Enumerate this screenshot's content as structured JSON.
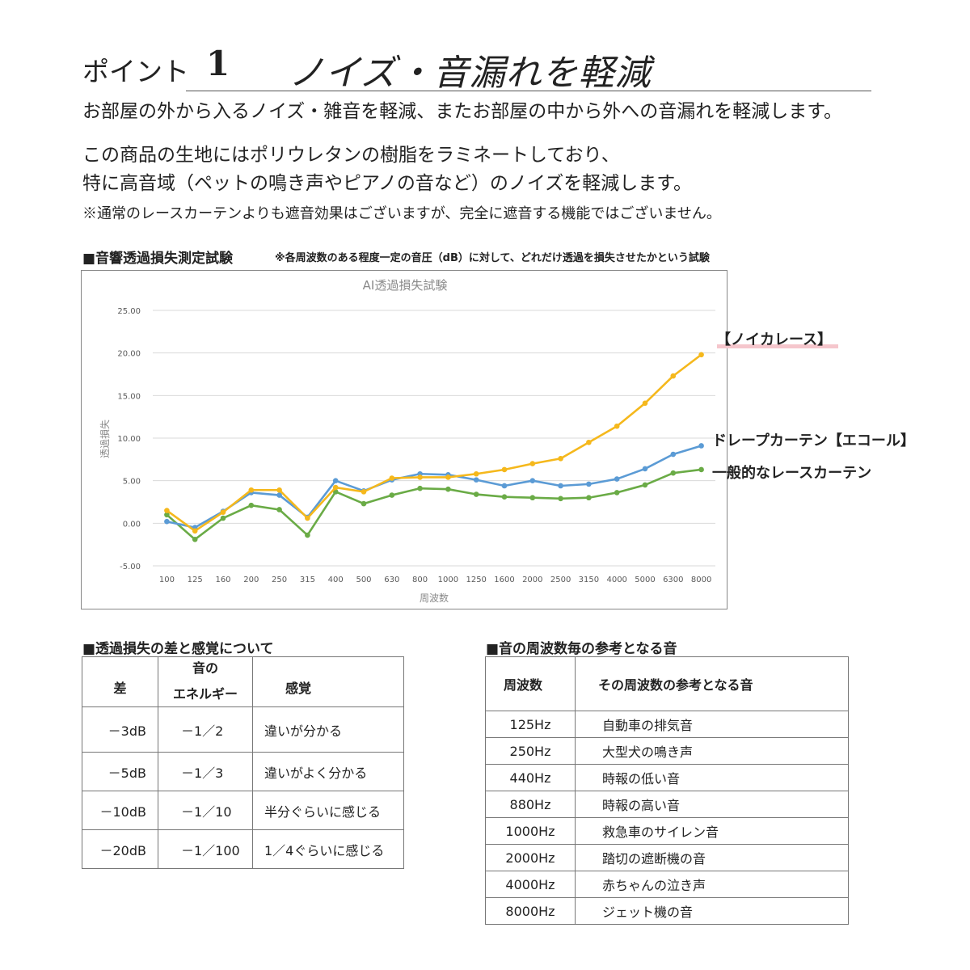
{
  "header": {
    "title_prefix": "ポイント",
    "title_number": "1",
    "title_main": "ノイズ・音漏れを軽減"
  },
  "intro": {
    "line1": "お部屋の外から入るノイズ・雑音を軽減、またお部屋の中から外への音漏れを軽減します。",
    "line2": "この商品の生地にはポリウレタンの樹脂をラミネートしており、",
    "line3": "特に高音域（ペットの鳴き声やピアノの音など）のノイズを軽減します。",
    "note": "※通常のレースカーテンよりも遮音効果はございますが、完全に遮音する機能ではございません。"
  },
  "chart_section": {
    "heading": "■音響透過損失測定試験",
    "subheading": "※各周波数のある程度一定の音圧（dB）に対して、どれだけ透過を損失させたかという試験"
  },
  "chart_data": {
    "type": "line",
    "title": "AI透過損失試験",
    "xlabel": "周波数",
    "ylabel": "透過損失",
    "ylim": [
      -5,
      25
    ],
    "yticks": [
      "25.00",
      "20.00",
      "15.00",
      "10.00",
      "5.00",
      "0.00",
      "-5.00"
    ],
    "ytick_values": [
      25,
      20,
      15,
      10,
      5,
      0,
      -5
    ],
    "grid": true,
    "categories": [
      "100",
      "125",
      "160",
      "200",
      "250",
      "315",
      "400",
      "500",
      "630",
      "800",
      "1000",
      "1250",
      "1600",
      "2000",
      "2500",
      "3150",
      "4000",
      "5000",
      "6300",
      "8000"
    ],
    "series": [
      {
        "name": "【ノイカレース】",
        "color": "#f5b81c",
        "values": [
          1.5,
          -0.9,
          1.3,
          3.9,
          3.9,
          0.6,
          4.2,
          3.7,
          5.3,
          5.4,
          5.4,
          5.8,
          6.3,
          7.0,
          7.6,
          9.5,
          11.4,
          14.1,
          17.3,
          19.8
        ]
      },
      {
        "name": "ドレープカーテン【エコール】",
        "color": "#5b9bd5",
        "values": [
          0.2,
          -0.5,
          1.4,
          3.6,
          3.3,
          0.7,
          5.0,
          3.8,
          5.1,
          5.8,
          5.7,
          5.1,
          4.4,
          5.0,
          4.4,
          4.6,
          5.2,
          6.4,
          8.1,
          9.1
        ]
      },
      {
        "name": "一般的なレースカーテン",
        "color": "#6aab46",
        "values": [
          1.0,
          -1.9,
          0.6,
          2.1,
          1.6,
          -1.4,
          3.7,
          2.3,
          3.3,
          4.1,
          4.0,
          3.4,
          3.1,
          3.0,
          2.9,
          3.0,
          3.6,
          4.5,
          5.9,
          6.3
        ]
      }
    ]
  },
  "series_labels": {
    "noika": "【ノイカレース】",
    "drape": "ドレープカーテン【エコール】",
    "lace": "一般的なレースカーテン"
  },
  "table1": {
    "heading": "■透過損失の差と感覚について",
    "header": {
      "col1": "差",
      "col2_line1": "音の",
      "col2_line2": "エネルギー",
      "col3": "感覚"
    },
    "rows": [
      {
        "diff": "－3dB",
        "energy": "－1／2",
        "sense": "違いが分かる"
      },
      {
        "diff": "－5dB",
        "energy": "－1／3",
        "sense": "違いがよく分かる"
      },
      {
        "diff": "－10dB",
        "energy": "－1／10",
        "sense": "半分ぐらいに感じる"
      },
      {
        "diff": "－20dB",
        "energy": "－1／100",
        "sense": "1／4ぐらいに感じる"
      }
    ]
  },
  "table2": {
    "heading": "■音の周波数毎の参考となる音",
    "header": {
      "col1": "周波数",
      "col2": "その周波数の参考となる音"
    },
    "rows": [
      {
        "freq": "125Hz",
        "sound": "自動車の排気音"
      },
      {
        "freq": "250Hz",
        "sound": "大型犬の鳴き声"
      },
      {
        "freq": "440Hz",
        "sound": "時報の低い音"
      },
      {
        "freq": "880Hz",
        "sound": "時報の高い音"
      },
      {
        "freq": "1000Hz",
        "sound": "救急車のサイレン音"
      },
      {
        "freq": "2000Hz",
        "sound": "踏切の遮断機の音"
      },
      {
        "freq": "4000Hz",
        "sound": "赤ちゃんの泣き声"
      },
      {
        "freq": "8000Hz",
        "sound": "ジェット機の音"
      }
    ]
  }
}
